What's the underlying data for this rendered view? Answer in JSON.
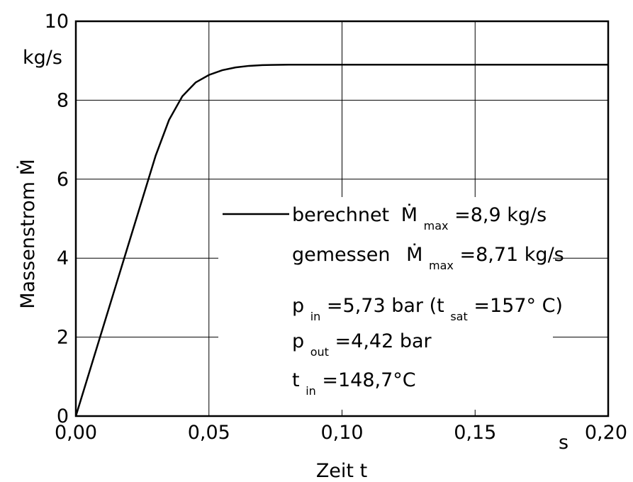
{
  "chart_data": {
    "type": "line",
    "xlabel": "Zeit t",
    "xunit": "s",
    "ylabel": "Massenstrom Ṁ",
    "yunit": "kg/s",
    "xlim": [
      0,
      0.2
    ],
    "ylim": [
      0,
      10
    ],
    "xticks": [
      0,
      0.05,
      0.1,
      0.15,
      0.2
    ],
    "xtick_labels": [
      "0,00",
      "0,05",
      "0,10",
      "0,15",
      "0,20"
    ],
    "yticks": [
      0,
      2,
      4,
      6,
      8,
      10
    ],
    "ytick_labels": [
      "0",
      "2",
      "4",
      "6",
      "8",
      "10"
    ],
    "grid": true,
    "series": [
      {
        "name": "berechnet",
        "x": [
          0,
          0.005,
          0.01,
          0.015,
          0.02,
          0.025,
          0.03,
          0.035,
          0.04,
          0.045,
          0.05,
          0.055,
          0.06,
          0.065,
          0.07,
          0.08,
          0.09,
          0.1,
          0.12,
          0.15,
          0.2
        ],
        "y": [
          0,
          1.1,
          2.2,
          3.3,
          4.4,
          5.5,
          6.6,
          7.5,
          8.1,
          8.45,
          8.64,
          8.76,
          8.83,
          8.87,
          8.89,
          8.9,
          8.9,
          8.9,
          8.9,
          8.9,
          8.9
        ]
      }
    ],
    "legend": {
      "placement": "center-right",
      "line1": {
        "text": "berechnet",
        "symbol": "Ṁ",
        "sub": "max",
        "value": "=8,9 kg/s"
      },
      "line2": {
        "text": "gemessen",
        "symbol": "Ṁ",
        "sub": "max",
        "value": "=8,71 kg/s"
      }
    },
    "annotations": [
      {
        "base": "p",
        "sub": "in",
        "text": "=5,73 bar (t",
        "sub2": "sat",
        "text2": "=157° C)"
      },
      {
        "base": "p",
        "sub": "out",
        "text": "=4,42 bar"
      },
      {
        "base": "t",
        "sub": "in",
        "text": "=148,7°C"
      }
    ]
  }
}
